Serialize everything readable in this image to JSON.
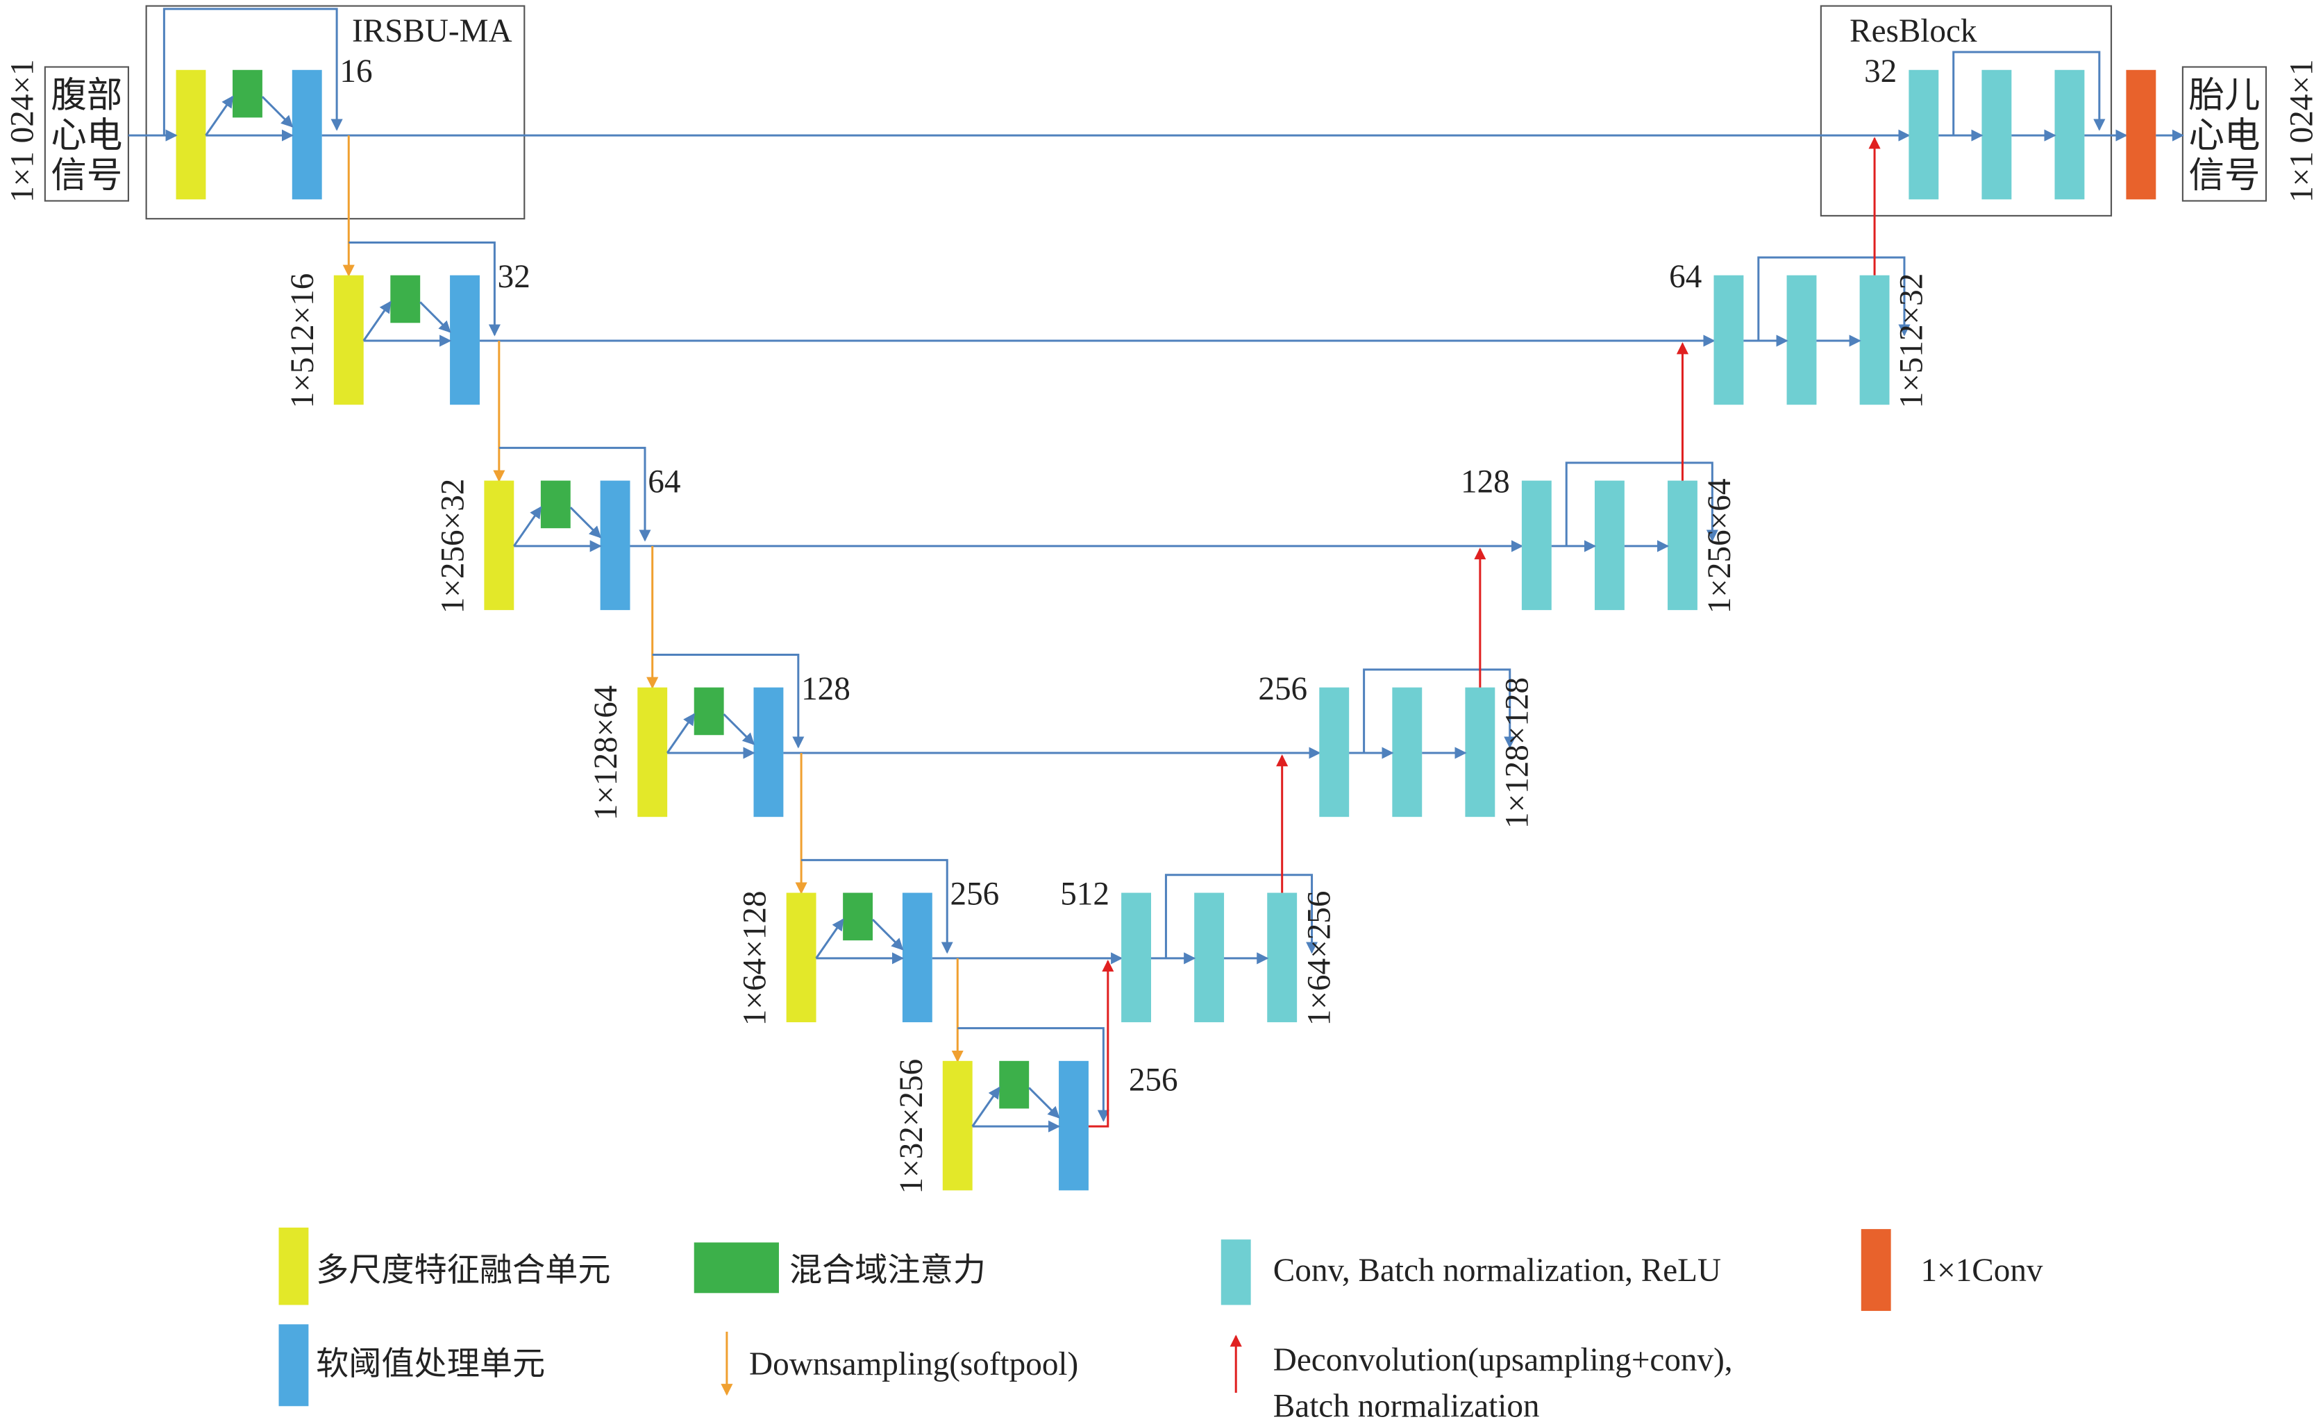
{
  "input": {
    "size": "1×1 024×1",
    "lines": [
      "腹部",
      "心电",
      "信号"
    ]
  },
  "output": {
    "size": "1×1 024×1",
    "lines": [
      "胎儿",
      "心电",
      "信号"
    ]
  },
  "modules": {
    "encoder": "IRSBU-MA",
    "decoder": "ResBlock"
  },
  "encoder": [
    {
      "channels": 16
    },
    {
      "channels": 32,
      "size": "1×512×16"
    },
    {
      "channels": 64,
      "size": "1×256×32"
    },
    {
      "channels": 128,
      "size": "1×128×64"
    },
    {
      "channels": 256,
      "size": "1×64×128"
    }
  ],
  "bottleneck": {
    "channels": 256,
    "size": "1×32×256"
  },
  "decoder": [
    {
      "channels": 32
    },
    {
      "channels": 64,
      "size": "1×512×32"
    },
    {
      "channels": 128,
      "size": "1×256×64"
    },
    {
      "channels": 256,
      "size": "1×128×128"
    },
    {
      "channels": 512,
      "size": "1×64×256"
    }
  ],
  "legend": [
    "多尺度特征融合单元",
    "混合域注意力",
    "Conv, Batch normalization, ReLU",
    "1×1Conv",
    "软阈值处理单元",
    "Downsampling(softpool)",
    [
      "Deconvolution(upsampling+conv),",
      "Batch normalization"
    ]
  ]
}
